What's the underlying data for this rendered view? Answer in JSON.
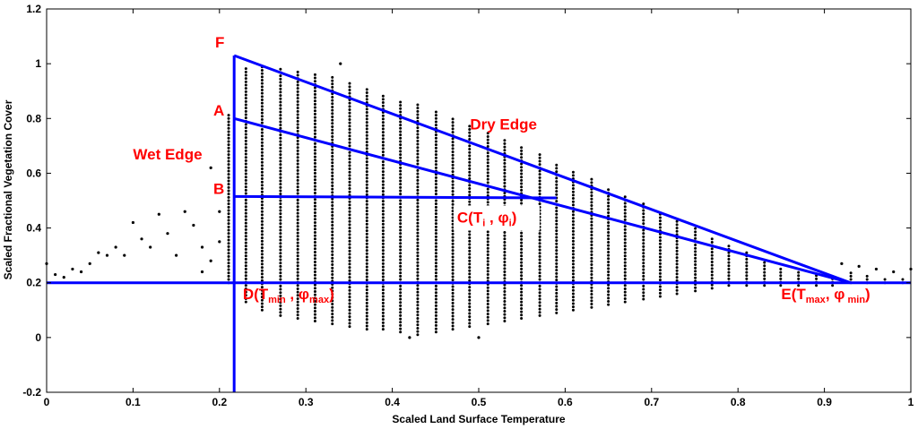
{
  "chart_data": {
    "type": "scatter",
    "title": "",
    "xlabel": "Scaled Land Surface Temperature",
    "ylabel": "Scaled Fractional Vegetation Cover",
    "xlim": [
      0,
      1
    ],
    "ylim": [
      -0.2,
      1.2
    ],
    "xticks": [
      0,
      0.1,
      0.2,
      0.3,
      0.4,
      0.5,
      0.6,
      0.7,
      0.8,
      0.9,
      1
    ],
    "yticks": [
      -0.2,
      0,
      0.2,
      0.4,
      0.6,
      0.8,
      1,
      1.2
    ],
    "xtick_labels": [
      "0",
      "0.1",
      "0.2",
      "0.3",
      "0.4",
      "0.5",
      "0.6",
      "0.7",
      "0.8",
      "0.9",
      "1"
    ],
    "ytick_labels": [
      "-0.2",
      "0",
      "0.2",
      "0.4",
      "0.6",
      "0.8",
      "1",
      "1.2"
    ],
    "scatter_columns": [
      {
        "x": 0.21,
        "ymin": 0.2,
        "ymax": 0.82
      },
      {
        "x": 0.23,
        "ymin": 0.13,
        "ymax": 0.99
      },
      {
        "x": 0.25,
        "ymin": 0.1,
        "ymax": 0.99
      },
      {
        "x": 0.27,
        "ymin": 0.08,
        "ymax": 0.98
      },
      {
        "x": 0.29,
        "ymin": 0.07,
        "ymax": 0.97
      },
      {
        "x": 0.31,
        "ymin": 0.06,
        "ymax": 0.96
      },
      {
        "x": 0.33,
        "ymin": 0.05,
        "ymax": 0.95
      },
      {
        "x": 0.35,
        "ymin": 0.04,
        "ymax": 0.93
      },
      {
        "x": 0.37,
        "ymin": 0.03,
        "ymax": 0.91
      },
      {
        "x": 0.39,
        "ymin": 0.03,
        "ymax": 0.89
      },
      {
        "x": 0.41,
        "ymin": 0.02,
        "ymax": 0.87
      },
      {
        "x": 0.43,
        "ymin": 0.01,
        "ymax": 0.85
      },
      {
        "x": 0.45,
        "ymin": 0.02,
        "ymax": 0.83
      },
      {
        "x": 0.47,
        "ymin": 0.03,
        "ymax": 0.8
      },
      {
        "x": 0.49,
        "ymin": 0.04,
        "ymax": 0.78
      },
      {
        "x": 0.51,
        "ymin": 0.05,
        "ymax": 0.75
      },
      {
        "x": 0.53,
        "ymin": 0.06,
        "ymax": 0.73
      },
      {
        "x": 0.55,
        "ymin": 0.07,
        "ymax": 0.7
      },
      {
        "x": 0.57,
        "ymin": 0.08,
        "ymax": 0.67
      },
      {
        "x": 0.59,
        "ymin": 0.09,
        "ymax": 0.64
      },
      {
        "x": 0.61,
        "ymin": 0.1,
        "ymax": 0.61
      },
      {
        "x": 0.63,
        "ymin": 0.11,
        "ymax": 0.58
      },
      {
        "x": 0.65,
        "ymin": 0.12,
        "ymax": 0.55
      },
      {
        "x": 0.67,
        "ymin": 0.13,
        "ymax": 0.52
      },
      {
        "x": 0.69,
        "ymin": 0.14,
        "ymax": 0.49
      },
      {
        "x": 0.71,
        "ymin": 0.15,
        "ymax": 0.46
      },
      {
        "x": 0.73,
        "ymin": 0.16,
        "ymax": 0.43
      },
      {
        "x": 0.75,
        "ymin": 0.17,
        "ymax": 0.4
      },
      {
        "x": 0.77,
        "ymin": 0.18,
        "ymax": 0.37
      },
      {
        "x": 0.79,
        "ymin": 0.19,
        "ymax": 0.34
      },
      {
        "x": 0.81,
        "ymin": 0.19,
        "ymax": 0.31
      },
      {
        "x": 0.83,
        "ymin": 0.19,
        "ymax": 0.28
      },
      {
        "x": 0.85,
        "ymin": 0.19,
        "ymax": 0.26
      },
      {
        "x": 0.87,
        "ymin": 0.19,
        "ymax": 0.24
      },
      {
        "x": 0.89,
        "ymin": 0.19,
        "ymax": 0.23
      },
      {
        "x": 0.91,
        "ymin": 0.19,
        "ymax": 0.22
      },
      {
        "x": 0.93,
        "ymin": 0.2,
        "ymax": 0.24
      },
      {
        "x": 0.95,
        "ymin": 0.2,
        "ymax": 0.23
      },
      {
        "x": 0.97,
        "ymin": 0.2,
        "ymax": 0.22
      },
      {
        "x": 0.99,
        "ymin": 0.2,
        "ymax": 0.22
      }
    ],
    "scatter_points": [
      {
        "x": 0.0,
        "y": 0.27
      },
      {
        "x": 0.01,
        "y": 0.23
      },
      {
        "x": 0.02,
        "y": 0.22
      },
      {
        "x": 0.03,
        "y": 0.25
      },
      {
        "x": 0.04,
        "y": 0.24
      },
      {
        "x": 0.05,
        "y": 0.27
      },
      {
        "x": 0.06,
        "y": 0.31
      },
      {
        "x": 0.07,
        "y": 0.3
      },
      {
        "x": 0.08,
        "y": 0.33
      },
      {
        "x": 0.09,
        "y": 0.3
      },
      {
        "x": 0.1,
        "y": 0.42
      },
      {
        "x": 0.11,
        "y": 0.36
      },
      {
        "x": 0.12,
        "y": 0.33
      },
      {
        "x": 0.13,
        "y": 0.45
      },
      {
        "x": 0.14,
        "y": 0.38
      },
      {
        "x": 0.15,
        "y": 0.3
      },
      {
        "x": 0.16,
        "y": 0.46
      },
      {
        "x": 0.17,
        "y": 0.41
      },
      {
        "x": 0.18,
        "y": 0.33
      },
      {
        "x": 0.19,
        "y": 0.62
      },
      {
        "x": 0.2,
        "y": 0.46
      },
      {
        "x": 0.2,
        "y": 0.35
      },
      {
        "x": 0.19,
        "y": 0.28
      },
      {
        "x": 0.18,
        "y": 0.24
      },
      {
        "x": 0.42,
        "y": 0.0
      },
      {
        "x": 0.5,
        "y": 0.0
      },
      {
        "x": 0.34,
        "y": 1.0
      },
      {
        "x": 0.92,
        "y": 0.27
      },
      {
        "x": 0.94,
        "y": 0.26
      },
      {
        "x": 0.96,
        "y": 0.25
      },
      {
        "x": 0.98,
        "y": 0.24
      },
      {
        "x": 1.0,
        "y": 0.25
      }
    ],
    "lines": [
      {
        "name": "dry-edge-F-E",
        "x": [
          0.217,
          0.93
        ],
        "y": [
          1.03,
          0.2
        ]
      },
      {
        "name": "line-A-E",
        "x": [
          0.217,
          0.93
        ],
        "y": [
          0.8,
          0.2
        ]
      },
      {
        "name": "line-B-C",
        "x": [
          0.217,
          0.59
        ],
        "y": [
          0.515,
          0.51
        ]
      },
      {
        "name": "wet-edge-vertical",
        "x": [
          0.217,
          0.217
        ],
        "y": [
          -0.2,
          1.03
        ]
      },
      {
        "name": "min-vegetation-line",
        "x": [
          0,
          1
        ],
        "y": [
          0.2,
          0.2
        ]
      }
    ],
    "line_color": "#0000ff",
    "point_color": "#000000",
    "annotation_color": "#ff0000",
    "annotations": [
      {
        "name": "F",
        "text": "F",
        "x": 0.195,
        "y": 1.06
      },
      {
        "name": "A",
        "text": "A",
        "x": 0.193,
        "y": 0.81
      },
      {
        "name": "B",
        "text": "B",
        "x": 0.193,
        "y": 0.525
      },
      {
        "name": "wet-edge",
        "text": "Wet Edge",
        "x": 0.1,
        "y": 0.65
      },
      {
        "name": "dry-edge",
        "text": "Dry Edge",
        "x": 0.49,
        "y": 0.76
      },
      {
        "name": "C",
        "text": "C(T",
        "sub1": "i",
        "mid": " , φ",
        "sub2": "i",
        "end": ")",
        "x": 0.475,
        "y": 0.42
      },
      {
        "name": "D",
        "text": "D(T",
        "sub1": "min",
        "mid": " , φ",
        "sub2": "max",
        "end": ")",
        "x": 0.227,
        "y": 0.14
      },
      {
        "name": "E",
        "text": "E(T",
        "sub1": "max",
        "mid": ", φ",
        "sub2": " min",
        "end": ")",
        "x": 0.85,
        "y": 0.14
      }
    ]
  }
}
